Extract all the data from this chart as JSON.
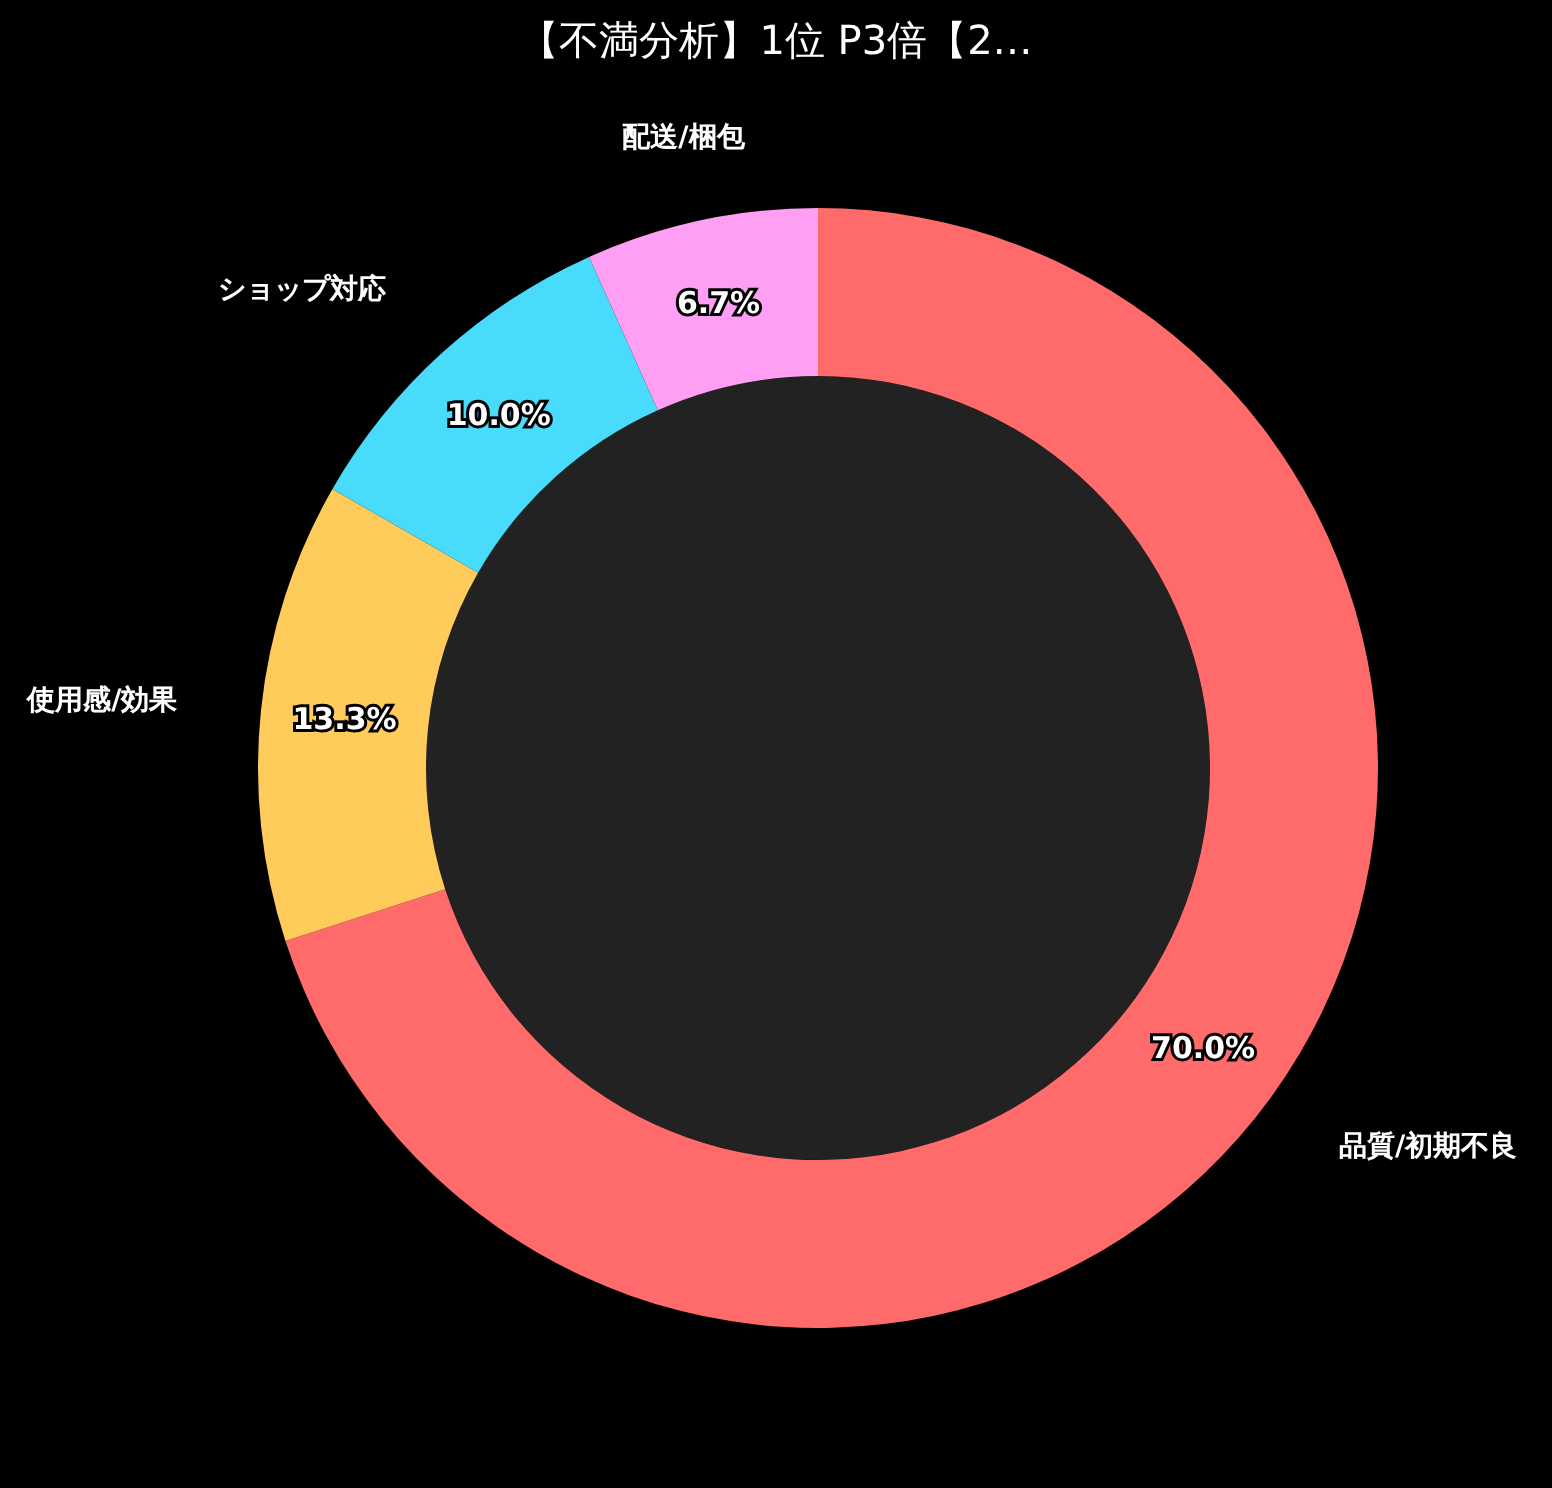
{
  "chart_data": {
    "type": "donut",
    "title": "【不満分析】1位 P3倍【2…",
    "categories": [
      "品質/初期不良",
      "使用感/効果",
      "ショップ対応",
      "配送/梱包"
    ],
    "values": [
      70.0,
      13.3,
      10.0,
      6.7
    ],
    "colors": [
      "#ff6b6b",
      "#ffcc5c",
      "#48dbfb",
      "#ff9ff3"
    ],
    "value_labels": [
      "70.0%",
      "13.3%",
      "10.0%",
      "6.7%"
    ],
    "legend": false
  }
}
